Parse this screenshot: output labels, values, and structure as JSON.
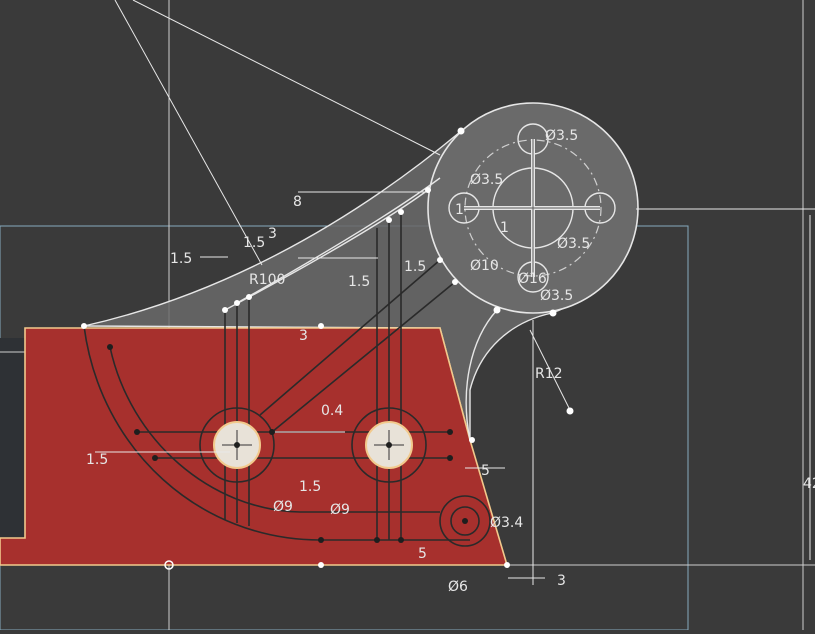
{
  "colors": {
    "background": "#3a3a3a",
    "face_red": "#a7302d",
    "face_gray": "#6a6a6a",
    "edge_highlight": "#f2c98c",
    "hole_fill": "#e8e2d8",
    "sketch_line": "#e6e6e6",
    "plane_outline": "#86a9bd"
  },
  "dimensions": {
    "radius_100": "R100",
    "radius_12": "R12",
    "dia_3_5_top": "Ø3.5",
    "dia_3_5_left": "Ø3.5",
    "dia_3_5_right": "Ø3.5",
    "dia_3_5_bottom": "Ø3.5",
    "dia_3_5_small_hole": "Ø3.4",
    "dia_10": "Ø10",
    "dia_16": "Ø16",
    "dia_9_left": "Ø9",
    "dia_9_right": "Ø9",
    "dia_6": "Ø6",
    "len_1_5_a": "1.5",
    "len_1_5_b": "1.5",
    "len_1_5_c": "1.5",
    "len_1_5_d": "1.5",
    "len_1_5_e": "1.5",
    "len_1_5_f": "1.5",
    "len_3_a": "3",
    "len_3_b": "3",
    "len_3_c": "3",
    "len_8": "8",
    "len_1": "1",
    "len_1_center": "1",
    "len_0_4": "0.4",
    "len_5_a": "5",
    "len_5_b": "5",
    "len_42": "42"
  }
}
